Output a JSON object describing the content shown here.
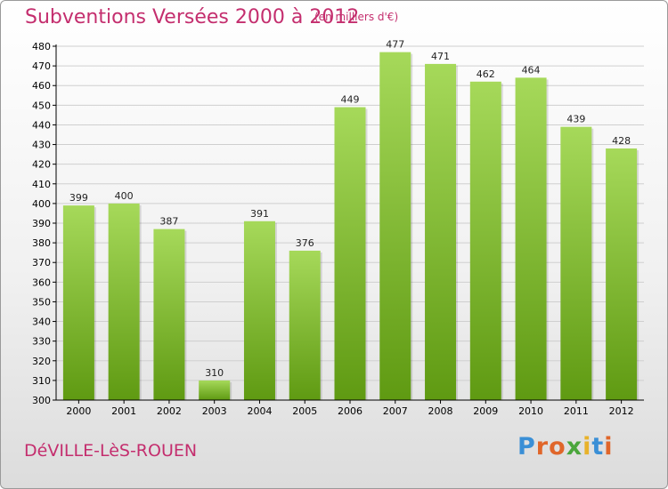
{
  "header": {
    "title": "Subventions Versées 2000 à 2012",
    "unit": "(en milliers d'€)"
  },
  "footer": {
    "commune": "DéVILLE-LèS-ROUEN",
    "logo": "Proxiti",
    "logo_colors": [
      "#3a8fd6",
      "#e0662a",
      "#e0662a",
      "#4aa63c",
      "#e8b22a",
      "#3a8fd6",
      "#e0662a"
    ]
  },
  "colors": {
    "bar_light": "#a6d95a",
    "bar_dark": "#5f9a12",
    "grid": "#cfcfcf",
    "axis": "#000000",
    "title": "#c42e6e"
  },
  "chart_data": {
    "type": "bar",
    "title": "Subventions Versées 2000 à 2012",
    "subtitle": "(en milliers d'€)",
    "xlabel": "",
    "ylabel": "",
    "categories": [
      "2000",
      "2001",
      "2002",
      "2003",
      "2004",
      "2005",
      "2006",
      "2007",
      "2008",
      "2009",
      "2010",
      "2011",
      "2012"
    ],
    "values": [
      399,
      400,
      387,
      310,
      391,
      376,
      449,
      477,
      471,
      462,
      464,
      439,
      428
    ],
    "ylim": [
      300,
      480
    ],
    "yticks": [
      300,
      310,
      320,
      330,
      340,
      350,
      360,
      370,
      380,
      390,
      400,
      410,
      420,
      430,
      440,
      450,
      460,
      470,
      480
    ],
    "grid": true,
    "legend": "none"
  }
}
